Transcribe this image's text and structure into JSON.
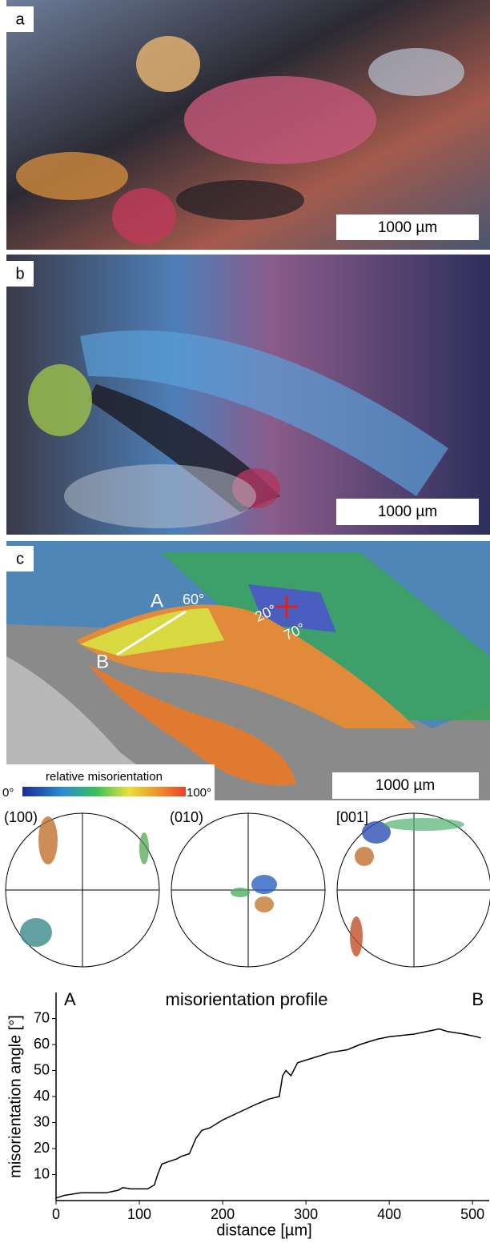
{
  "panels": {
    "a": {
      "letter": "a",
      "scale": "1000 µm"
    },
    "b": {
      "letter": "b",
      "scale": "1000 µm"
    },
    "c": {
      "letter": "c",
      "scale": "1000 µm",
      "point_a": "A",
      "point_b": "B",
      "angle_60": "60°",
      "angle_20": "20°",
      "angle_70": "70°",
      "legend_title": "relative misorientation",
      "legend_min": "0°",
      "legend_max": "100°"
    }
  },
  "pole_figures": [
    "(100)",
    "(010)",
    "[001]"
  ],
  "chart_data": {
    "type": "line",
    "title": "misorientation profile",
    "x_label": "distance [µm]",
    "y_label": "misorientation angle [°]",
    "start_label": "A",
    "end_label": "B",
    "color": "#000000",
    "x": [
      0,
      10,
      20,
      30,
      45,
      60,
      75,
      80,
      90,
      110,
      118,
      122,
      127,
      135,
      145,
      150,
      160,
      168,
      175,
      185,
      200,
      220,
      240,
      255,
      268,
      272,
      276,
      282,
      290,
      300,
      330,
      350,
      365,
      385,
      400,
      430,
      460,
      470,
      490,
      505,
      510
    ],
    "values": [
      1,
      2,
      2.5,
      3,
      3,
      3,
      4,
      5,
      4.5,
      4.5,
      6,
      10,
      14,
      15,
      16,
      17,
      18,
      24,
      27,
      28,
      31,
      34,
      37,
      39,
      40,
      48,
      50,
      48,
      53,
      54,
      57,
      58,
      60,
      62,
      63,
      64,
      66,
      65,
      64,
      63,
      62.5
    ],
    "xlim": [
      0,
      520
    ],
    "ylim": [
      0,
      80
    ],
    "xticks": [
      0,
      100,
      200,
      300,
      400,
      500
    ],
    "yticks": [
      10,
      20,
      30,
      40,
      50,
      60,
      70
    ]
  }
}
